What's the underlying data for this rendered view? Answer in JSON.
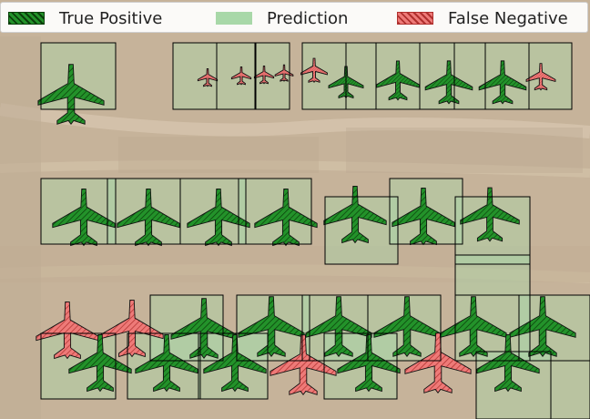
{
  "image": {
    "description_kind": "aerial photo of aircraft boneyard with object-detection overlay"
  },
  "legend": {
    "entries": [
      {
        "label": "True Positive",
        "kind": "tp"
      },
      {
        "label": "Prediction",
        "kind": "pred"
      },
      {
        "label": "False Negative",
        "kind": "fn"
      }
    ]
  },
  "colors": {
    "true_positive": "#1f8a1f",
    "prediction": "#a8d8a8",
    "false_negative": "#e8706e",
    "outline": "#000000"
  },
  "detections": [
    {
      "class": "true_positive",
      "size": "large"
    },
    {
      "class": "false_negative",
      "size": "small"
    },
    {
      "class": "false_negative",
      "size": "small"
    },
    {
      "class": "false_negative",
      "size": "small"
    },
    {
      "class": "false_negative",
      "size": "small"
    },
    {
      "class": "false_negative",
      "size": "small"
    },
    {
      "class": "true_positive",
      "size": "small"
    },
    {
      "class": "true_positive",
      "size": "small"
    },
    {
      "class": "true_positive",
      "size": "small"
    },
    {
      "class": "true_positive",
      "size": "small"
    },
    {
      "class": "false_negative",
      "size": "small"
    },
    {
      "class": "true_positive",
      "size": "large"
    },
    {
      "class": "true_positive",
      "size": "large"
    },
    {
      "class": "true_positive",
      "size": "large"
    },
    {
      "class": "true_positive",
      "size": "large"
    },
    {
      "class": "true_positive",
      "size": "large"
    },
    {
      "class": "true_positive",
      "size": "large"
    },
    {
      "class": "true_positive",
      "size": "large"
    },
    {
      "class": "false_negative",
      "size": "large"
    },
    {
      "class": "false_negative",
      "size": "large"
    },
    {
      "class": "true_positive",
      "size": "large"
    },
    {
      "class": "true_positive",
      "size": "large"
    },
    {
      "class": "true_positive",
      "size": "large"
    },
    {
      "class": "true_positive",
      "size": "large"
    },
    {
      "class": "true_positive",
      "size": "large"
    },
    {
      "class": "true_positive",
      "size": "large"
    },
    {
      "class": "true_positive",
      "size": "large"
    },
    {
      "class": "true_positive",
      "size": "large"
    },
    {
      "class": "true_positive",
      "size": "large"
    },
    {
      "class": "false_negative",
      "size": "large"
    },
    {
      "class": "true_positive",
      "size": "large"
    },
    {
      "class": "false_negative",
      "size": "large"
    },
    {
      "class": "true_positive",
      "size": "large"
    }
  ]
}
